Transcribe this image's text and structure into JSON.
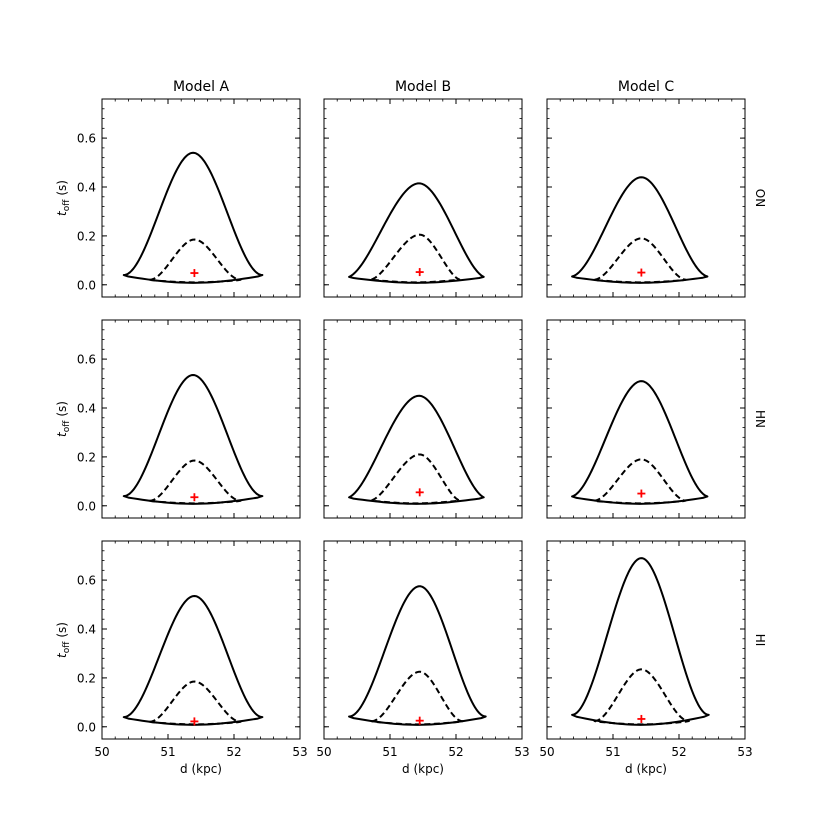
{
  "chart_data": {
    "type": "contour",
    "layout": "3x3 grid",
    "columns": [
      "Model A",
      "Model B",
      "Model C"
    ],
    "rows": [
      "ON",
      "HN",
      "HI"
    ],
    "xlabel": "d (kpc)",
    "ylabel_main": "t",
    "ylabel_sub": "off",
    "ylabel_unit": " (s)",
    "xlim": [
      50,
      53
    ],
    "ylim": [
      -0.05,
      0.76
    ],
    "xticks": [
      50,
      51,
      52,
      53
    ],
    "xtick_labels": [
      "50",
      "51",
      "52",
      "53"
    ],
    "yticks": [
      0.0,
      0.2,
      0.4,
      0.6
    ],
    "ytick_labels": [
      "0.0",
      "0.2",
      "0.4",
      "0.6"
    ],
    "marker_color": "#ff0000",
    "line_color": "#000000",
    "panels": [
      [
        {
          "best_fit": {
            "d": 51.4,
            "t": 0.048
          },
          "outer": {
            "left": 50.33,
            "right": 52.43,
            "peak_d": 51.38,
            "peak_t": 0.54,
            "base_t": 0.008,
            "shoulder": 0.0
          },
          "inner": {
            "left": 50.72,
            "right": 52.1,
            "peak_d": 51.4,
            "peak_t": 0.185,
            "base_t": 0.01,
            "shoulder": 0.0
          }
        },
        {
          "best_fit": {
            "d": 51.45,
            "t": 0.052
          },
          "outer": {
            "left": 50.38,
            "right": 52.42,
            "peak_d": 51.44,
            "peak_t": 0.415,
            "base_t": 0.008,
            "shoulder": 0.3
          },
          "inner": {
            "left": 50.72,
            "right": 52.05,
            "peak_d": 51.45,
            "peak_t": 0.205,
            "base_t": 0.01,
            "shoulder": 0.3
          }
        },
        {
          "best_fit": {
            "d": 51.43,
            "t": 0.05
          },
          "outer": {
            "left": 50.38,
            "right": 52.43,
            "peak_d": 51.43,
            "peak_t": 0.44,
            "base_t": 0.008,
            "shoulder": 0.15
          },
          "inner": {
            "left": 50.72,
            "right": 52.1,
            "peak_d": 51.43,
            "peak_t": 0.19,
            "base_t": 0.01,
            "shoulder": 0.1
          }
        }
      ],
      [
        {
          "best_fit": {
            "d": 51.4,
            "t": 0.035
          },
          "outer": {
            "left": 50.33,
            "right": 52.43,
            "peak_d": 51.38,
            "peak_t": 0.535,
            "base_t": 0.008,
            "shoulder": 0.0
          },
          "inner": {
            "left": 50.72,
            "right": 52.1,
            "peak_d": 51.4,
            "peak_t": 0.185,
            "base_t": 0.01,
            "shoulder": 0.0
          }
        },
        {
          "best_fit": {
            "d": 51.45,
            "t": 0.055
          },
          "outer": {
            "left": 50.38,
            "right": 52.42,
            "peak_d": 51.44,
            "peak_t": 0.45,
            "base_t": 0.008,
            "shoulder": 0.3
          },
          "inner": {
            "left": 50.72,
            "right": 52.05,
            "peak_d": 51.45,
            "peak_t": 0.21,
            "base_t": 0.01,
            "shoulder": 0.3
          }
        },
        {
          "best_fit": {
            "d": 51.43,
            "t": 0.05
          },
          "outer": {
            "left": 50.38,
            "right": 52.43,
            "peak_d": 51.43,
            "peak_t": 0.51,
            "base_t": 0.008,
            "shoulder": 0.15
          },
          "inner": {
            "left": 50.72,
            "right": 52.1,
            "peak_d": 51.43,
            "peak_t": 0.19,
            "base_t": 0.01,
            "shoulder": 0.1
          }
        }
      ],
      [
        {
          "best_fit": {
            "d": 51.4,
            "t": 0.022
          },
          "outer": {
            "left": 50.33,
            "right": 52.43,
            "peak_d": 51.4,
            "peak_t": 0.535,
            "base_t": 0.008,
            "shoulder": 0.0
          },
          "inner": {
            "left": 50.72,
            "right": 52.1,
            "peak_d": 51.4,
            "peak_t": 0.185,
            "base_t": 0.01,
            "shoulder": 0.0
          }
        },
        {
          "best_fit": {
            "d": 51.45,
            "t": 0.025
          },
          "outer": {
            "left": 50.38,
            "right": 52.45,
            "peak_d": 51.45,
            "peak_t": 0.575,
            "base_t": 0.008,
            "shoulder": 0.0
          },
          "inner": {
            "left": 50.72,
            "right": 52.1,
            "peak_d": 51.45,
            "peak_t": 0.225,
            "base_t": 0.01,
            "shoulder": 0.0
          }
        },
        {
          "best_fit": {
            "d": 51.43,
            "t": 0.032
          },
          "outer": {
            "left": 50.38,
            "right": 52.45,
            "peak_d": 51.43,
            "peak_t": 0.69,
            "base_t": 0.008,
            "shoulder": 0.0
          },
          "inner": {
            "left": 50.72,
            "right": 52.15,
            "peak_d": 51.43,
            "peak_t": 0.235,
            "base_t": 0.01,
            "shoulder": 0.0
          }
        }
      ]
    ]
  }
}
